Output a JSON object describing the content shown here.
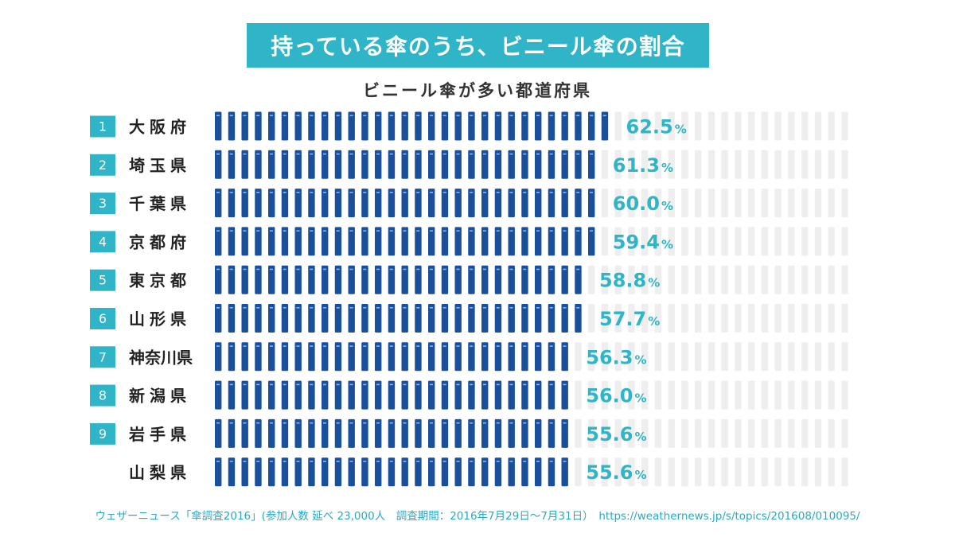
{
  "title": "持っている傘のうち、ビニール傘の割合",
  "subtitle": "ビニール傘が多い都道府県",
  "source": "ウェザーニュース「傘調査2016」(参加人数 延べ 23,000人　調査期間：2016年7月29日〜7月31日）　https://weathernews.jp/s/topics/201608/010095/",
  "colors": {
    "banner": "#2fb4c8",
    "rank_badge": "#2fb4c8",
    "umbrella_filled": "#1a4f9c",
    "umbrella_empty": "#eeeeee",
    "value_label": "#2fb4c8"
  },
  "chart_data": {
    "type": "bar",
    "style": "pictogram (umbrella icons, 48 per row = 100%)",
    "unit": "%",
    "xlim": [
      0,
      100
    ],
    "ranks": [
      "1",
      "2",
      "3",
      "4",
      "5",
      "6",
      "7",
      "8",
      "9",
      ""
    ],
    "categories": [
      "大阪府",
      "埼玉県",
      "千葉県",
      "京都府",
      "東京都",
      "山形県",
      "神奈川県",
      "新潟県",
      "岩手県",
      "山梨県"
    ],
    "values": [
      62.5,
      61.3,
      60.0,
      59.4,
      58.8,
      57.7,
      56.3,
      56.0,
      55.6,
      55.6
    ],
    "value_labels": [
      "62.5",
      "61.3",
      "60.0",
      "59.4",
      "58.8",
      "57.7",
      "56.3",
      "56.0",
      "55.6",
      "55.6"
    ]
  }
}
